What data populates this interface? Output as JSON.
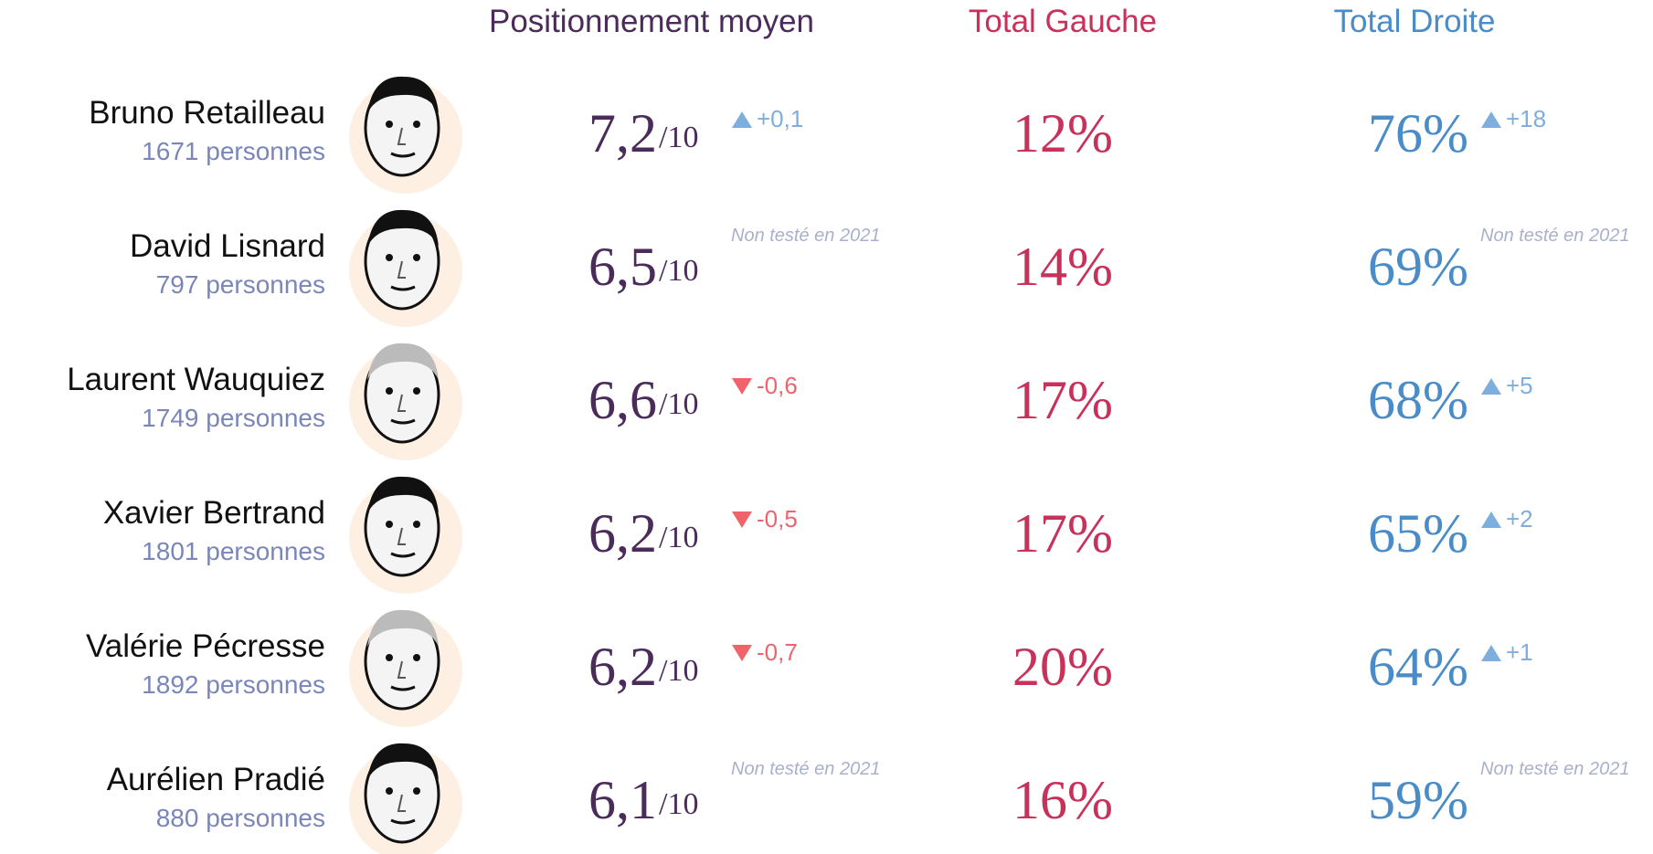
{
  "header": {
    "position": "Positionnement moyen",
    "gauche": "Total Gauche",
    "droite": "Total Droite"
  },
  "rows": [
    {
      "name": "Bruno Retailleau",
      "count": "1671 personnes",
      "position": "7,2",
      "scale": "/10",
      "position_change": "+0,1",
      "gauche": "12%",
      "droite": "76%",
      "droite_change": "+18"
    },
    {
      "name": "David Lisnard",
      "count": "797 personnes",
      "position": "6,5",
      "scale": "/10",
      "position_change": "Non testé en 2021",
      "gauche": "14%",
      "droite": "69%",
      "droite_change": "Non testé en 2021"
    },
    {
      "name": "Laurent Wauquiez",
      "count": "1749 personnes",
      "position": "6,6",
      "scale": "/10",
      "position_change": "-0,6",
      "gauche": "17%",
      "droite": "68%",
      "droite_change": "+5"
    },
    {
      "name": "Xavier Bertrand",
      "count": "1801 personnes",
      "position": "6,2",
      "scale": "/10",
      "position_change": "-0,5",
      "gauche": "17%",
      "droite": "65%",
      "droite_change": "+2"
    },
    {
      "name": "Valérie Pécresse",
      "count": "1892 personnes",
      "position": "6,2",
      "scale": "/10",
      "position_change": "-0,7",
      "gauche": "20%",
      "droite": "64%",
      "droite_change": "+1"
    },
    {
      "name": "Aurélien Pradié",
      "count": "880 personnes",
      "position": "6,1",
      "scale": "/10",
      "position_change": "Non testé en 2021",
      "gauche": "16%",
      "droite": "59%",
      "droite_change": "Non testé en 2021"
    }
  ]
}
